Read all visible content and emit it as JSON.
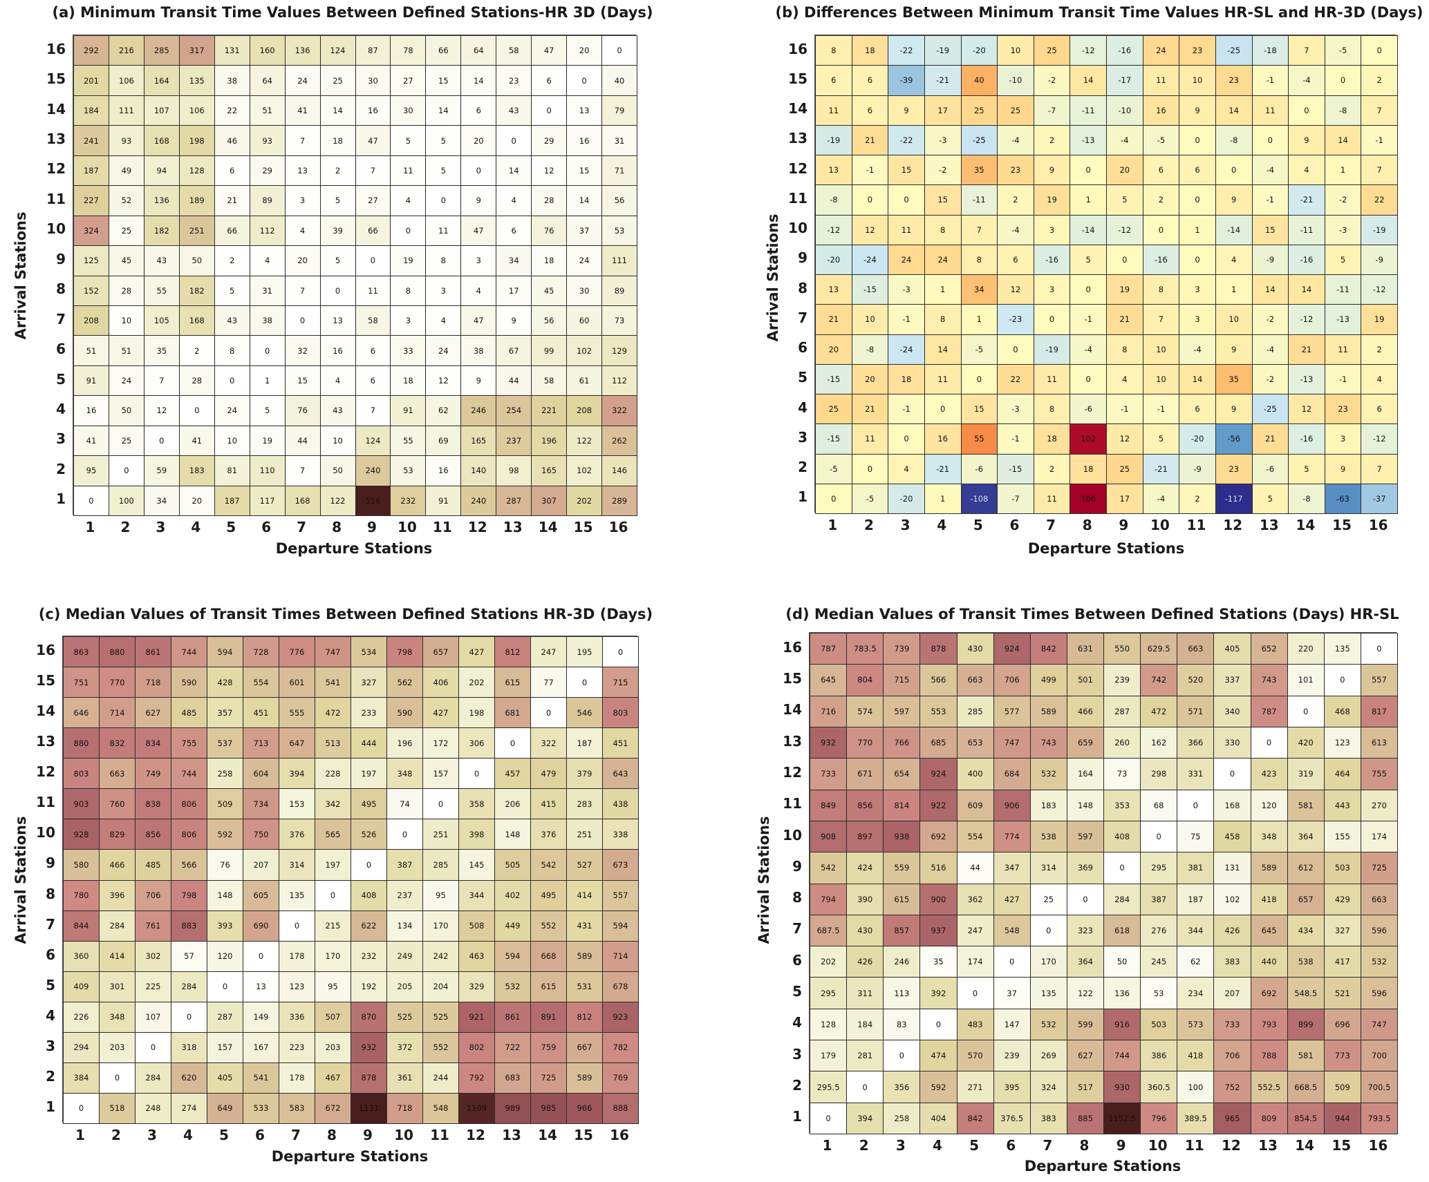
{
  "chart_data": [
    {
      "id": "a",
      "type": "heatmap",
      "title": "(a) Minimum Transit Time Values Between Defined Stations-HR 3D (Days)",
      "xlabel": "Departure Stations",
      "ylabel": "Arrival Stations",
      "x_ticks": [
        "1",
        "2",
        "3",
        "4",
        "5",
        "6",
        "7",
        "8",
        "9",
        "10",
        "11",
        "12",
        "13",
        "14",
        "15",
        "16"
      ],
      "y_ticks": [
        "16",
        "15",
        "14",
        "13",
        "12",
        "11",
        "10",
        "9",
        "8",
        "7",
        "6",
        "5",
        "4",
        "3",
        "2",
        "1"
      ],
      "colormap": "sequential-white-yellow-brown",
      "vmin": 0,
      "vmax": 516,
      "values": [
        [
          292,
          216,
          285,
          317,
          131,
          160,
          136,
          124,
          87,
          78,
          66,
          64,
          58,
          47,
          20,
          0
        ],
        [
          201,
          106,
          164,
          135,
          38,
          64,
          24,
          25,
          30,
          27,
          15,
          14,
          23,
          6,
          0,
          40
        ],
        [
          184,
          111,
          107,
          106,
          22,
          51,
          41,
          14,
          16,
          30,
          14,
          6,
          43,
          0,
          13,
          79
        ],
        [
          241,
          93,
          168,
          198,
          46,
          93,
          7,
          18,
          47,
          5,
          5,
          20,
          0,
          29,
          16,
          31
        ],
        [
          187,
          49,
          94,
          128,
          6,
          29,
          13,
          2,
          7,
          11,
          5,
          0,
          14,
          12,
          15,
          71
        ],
        [
          227,
          52,
          136,
          189,
          21,
          89,
          3,
          5,
          27,
          4,
          0,
          9,
          4,
          28,
          14,
          56
        ],
        [
          324,
          25,
          182,
          251,
          66,
          112,
          4,
          39,
          66,
          0,
          11,
          47,
          6,
          76,
          37,
          53
        ],
        [
          125,
          45,
          43,
          50,
          2,
          4,
          20,
          5,
          0,
          19,
          8,
          3,
          34,
          18,
          24,
          111
        ],
        [
          152,
          28,
          55,
          182,
          5,
          31,
          7,
          0,
          11,
          8,
          3,
          4,
          17,
          45,
          30,
          89
        ],
        [
          208,
          10,
          105,
          168,
          43,
          38,
          0,
          13,
          58,
          3,
          4,
          47,
          9,
          56,
          60,
          73
        ],
        [
          51,
          51,
          35,
          2,
          8,
          0,
          32,
          16,
          6,
          33,
          24,
          38,
          67,
          99,
          102,
          129
        ],
        [
          91,
          24,
          7,
          28,
          0,
          1,
          15,
          4,
          6,
          18,
          12,
          9,
          44,
          58,
          61,
          112
        ],
        [
          16,
          50,
          12,
          0,
          24,
          5,
          76,
          43,
          7,
          91,
          62,
          246,
          254,
          221,
          208,
          322
        ],
        [
          41,
          25,
          0,
          41,
          10,
          19,
          44,
          10,
          124,
          55,
          69,
          165,
          237,
          196,
          122,
          262
        ],
        [
          95,
          0,
          59,
          183,
          81,
          110,
          7,
          50,
          240,
          53,
          16,
          140,
          98,
          165,
          102,
          146
        ],
        [
          0,
          100,
          34,
          20,
          187,
          117,
          168,
          122,
          516,
          232,
          91,
          240,
          287,
          307,
          202,
          289
        ]
      ]
    },
    {
      "id": "b",
      "type": "heatmap",
      "title": "(b) Differences Between Minimum Transit Time Values HR-SL and HR-3D (Days)",
      "xlabel": "Departure Stations",
      "ylabel": "Arrival Stations",
      "x_ticks": [
        "1",
        "2",
        "3",
        "4",
        "5",
        "6",
        "7",
        "8",
        "9",
        "10",
        "11",
        "12",
        "13",
        "14",
        "15",
        "16"
      ],
      "y_ticks": [
        "16",
        "15",
        "14",
        "13",
        "12",
        "11",
        "10",
        "9",
        "8",
        "7",
        "6",
        "5",
        "4",
        "3",
        "2",
        "1"
      ],
      "colormap": "diverging-blue-yellow-red",
      "vmin": -117,
      "vmax": 106,
      "values": [
        [
          8,
          18,
          -22,
          -19,
          -20,
          10,
          25,
          -12,
          -16,
          24,
          23,
          -25,
          -18,
          7,
          -5,
          0
        ],
        [
          6,
          6,
          -39,
          -21,
          40,
          -10,
          -2,
          14,
          -17,
          11,
          10,
          23,
          -1,
          -4,
          0,
          2
        ],
        [
          11,
          6,
          9,
          17,
          25,
          25,
          -7,
          -11,
          -10,
          16,
          9,
          14,
          11,
          0,
          -8,
          7
        ],
        [
          -19,
          21,
          -22,
          -3,
          -25,
          -4,
          2,
          -13,
          -4,
          -5,
          0,
          -8,
          0,
          9,
          14,
          -1
        ],
        [
          13,
          -1,
          15,
          -2,
          35,
          23,
          9,
          0,
          20,
          6,
          6,
          0,
          -4,
          4,
          1,
          7
        ],
        [
          -8,
          0,
          0,
          15,
          -11,
          2,
          19,
          1,
          5,
          2,
          0,
          9,
          -1,
          -21,
          -2,
          22
        ],
        [
          -12,
          12,
          11,
          8,
          7,
          -4,
          3,
          -14,
          -12,
          0,
          1,
          -14,
          15,
          -11,
          -3,
          -19
        ],
        [
          -20,
          -24,
          24,
          24,
          8,
          6,
          -16,
          5,
          0,
          -16,
          0,
          4,
          -9,
          -16,
          5,
          -9
        ],
        [
          13,
          -15,
          -3,
          1,
          34,
          12,
          3,
          0,
          19,
          8,
          3,
          1,
          14,
          14,
          -11,
          -12
        ],
        [
          21,
          10,
          -1,
          8,
          1,
          -23,
          0,
          -1,
          21,
          7,
          3,
          10,
          -2,
          -12,
          -13,
          19
        ],
        [
          20,
          -8,
          -24,
          14,
          -5,
          0,
          -19,
          -4,
          8,
          10,
          -4,
          9,
          -4,
          21,
          11,
          2
        ],
        [
          -15,
          20,
          18,
          11,
          0,
          22,
          11,
          0,
          4,
          10,
          14,
          35,
          -2,
          -13,
          -1,
          4
        ],
        [
          25,
          21,
          -1,
          0,
          15,
          -3,
          8,
          -6,
          -1,
          -1,
          6,
          9,
          -25,
          12,
          23,
          6
        ],
        [
          -15,
          11,
          0,
          16,
          55,
          -1,
          18,
          102,
          12,
          5,
          -20,
          -56,
          21,
          -16,
          3,
          -12
        ],
        [
          -5,
          0,
          4,
          -21,
          -6,
          -15,
          2,
          18,
          25,
          -21,
          -9,
          23,
          -6,
          5,
          9,
          7
        ],
        [
          0,
          -5,
          -20,
          1,
          -108,
          -7,
          11,
          106,
          17,
          -4,
          2,
          -117,
          5,
          -8,
          -63,
          -37
        ]
      ]
    },
    {
      "id": "c",
      "type": "heatmap",
      "title": "(c) Median Values of Transit Times Between Defined Stations HR-3D (Days)",
      "xlabel": "Departure Stations",
      "ylabel": "Arrival Stations",
      "x_ticks": [
        "1",
        "2",
        "3",
        "4",
        "5",
        "6",
        "7",
        "8",
        "9",
        "10",
        "11",
        "12",
        "13",
        "14",
        "15",
        "16"
      ],
      "y_ticks": [
        "16",
        "15",
        "14",
        "13",
        "12",
        "11",
        "10",
        "9",
        "8",
        "7",
        "6",
        "5",
        "4",
        "3",
        "2",
        "1"
      ],
      "colormap": "sequential-white-yellow-brown",
      "vmin": 0,
      "vmax": 1131,
      "values": [
        [
          863,
          880,
          861,
          744,
          594,
          728,
          776,
          747,
          534,
          798,
          657,
          427,
          812,
          247,
          195,
          0
        ],
        [
          751,
          770,
          718,
          590,
          428,
          554,
          601,
          541,
          327,
          562,
          406,
          202,
          615,
          77,
          0,
          715
        ],
        [
          646,
          714,
          627,
          485,
          357,
          451,
          555,
          472,
          233,
          590,
          427,
          198,
          681,
          0,
          546,
          803
        ],
        [
          880,
          832,
          834,
          755,
          537,
          713,
          647,
          513,
          444,
          196,
          172,
          306,
          0,
          322,
          187,
          451
        ],
        [
          803,
          663,
          749,
          744,
          258,
          604,
          394,
          228,
          197,
          348,
          157,
          0,
          457,
          479,
          379,
          643
        ],
        [
          903,
          760,
          838,
          806,
          509,
          734,
          153,
          342,
          495,
          74,
          0,
          358,
          206,
          415,
          283,
          438
        ],
        [
          928,
          829,
          856,
          806,
          592,
          750,
          376,
          565,
          526,
          0,
          251,
          398,
          148,
          376,
          251,
          338
        ],
        [
          580,
          466,
          485,
          566,
          76,
          207,
          314,
          197,
          0,
          387,
          285,
          145,
          505,
          542,
          527,
          673
        ],
        [
          780,
          396,
          706,
          798,
          148,
          605,
          135,
          0,
          408,
          237,
          95,
          344,
          402,
          495,
          414,
          557
        ],
        [
          844,
          284,
          761,
          883,
          393,
          690,
          0,
          215,
          622,
          134,
          170,
          508,
          449,
          552,
          431,
          594
        ],
        [
          360,
          414,
          302,
          57,
          120,
          0,
          178,
          170,
          232,
          249,
          242,
          463,
          594,
          668,
          589,
          714
        ],
        [
          409,
          301,
          225,
          284,
          0,
          13,
          123,
          95,
          192,
          205,
          204,
          329,
          532,
          615,
          531,
          678
        ],
        [
          226,
          348,
          107,
          0,
          287,
          149,
          336,
          507,
          870,
          525,
          525,
          921,
          861,
          891,
          812,
          923
        ],
        [
          294,
          203,
          0,
          318,
          157,
          167,
          223,
          203,
          932,
          372,
          552,
          802,
          722,
          759,
          667,
          782
        ],
        [
          384,
          0,
          284,
          620,
          405,
          541,
          178,
          467,
          878,
          361,
          244,
          792,
          683,
          725,
          589,
          769
        ],
        [
          0,
          518,
          248,
          274,
          649,
          533,
          583,
          672,
          1131,
          718,
          548,
          1109,
          989,
          985,
          966,
          888
        ]
      ]
    },
    {
      "id": "d",
      "type": "heatmap",
      "title": "(d) Median Values of Transit Times Between Defined Stations (Days) HR-SL",
      "xlabel": "Departure Stations",
      "ylabel": "Arrival Stations",
      "x_ticks": [
        "1",
        "2",
        "3",
        "4",
        "5",
        "6",
        "7",
        "8",
        "9",
        "10",
        "11",
        "12",
        "13",
        "14",
        "15",
        "16"
      ],
      "y_ticks": [
        "16",
        "15",
        "14",
        "13",
        "12",
        "11",
        "10",
        "9",
        "8",
        "7",
        "6",
        "5",
        "4",
        "3",
        "2",
        "1"
      ],
      "colormap": "sequential-white-yellow-brown",
      "vmin": 0,
      "vmax": 1152.5,
      "values": [
        [
          787,
          783.5,
          739,
          878,
          430,
          924,
          842,
          631,
          550,
          629.5,
          663,
          405,
          652,
          220,
          135,
          0
        ],
        [
          645,
          804,
          715,
          566,
          663,
          706,
          499,
          501,
          239,
          742,
          520,
          337,
          743,
          101,
          0,
          557
        ],
        [
          716,
          574,
          597,
          553,
          285,
          577,
          589,
          466,
          287,
          472,
          571,
          340,
          787,
          0,
          468,
          817
        ],
        [
          932,
          770,
          766,
          685,
          653,
          747,
          743,
          659,
          260,
          162,
          366,
          330,
          0,
          420,
          123,
          613
        ],
        [
          733,
          671,
          654,
          924,
          400,
          684,
          532,
          164,
          73,
          298,
          331,
          0,
          423,
          319,
          464,
          755
        ],
        [
          849,
          856,
          814,
          922,
          609,
          906,
          183,
          148,
          353,
          68,
          0,
          168,
          120,
          581,
          443,
          270
        ],
        [
          908,
          897,
          938,
          692,
          554,
          774,
          538,
          597,
          408,
          0,
          75,
          458,
          348,
          364,
          155,
          174
        ],
        [
          542,
          424,
          559,
          516,
          44,
          347,
          314,
          369,
          0,
          295,
          381,
          131,
          589,
          612,
          503,
          725
        ],
        [
          794,
          390,
          615,
          900,
          362,
          427,
          25,
          0,
          284,
          387,
          187,
          102,
          418,
          657,
          429,
          663
        ],
        [
          687.5,
          430,
          857,
          937,
          247,
          548,
          0,
          323,
          618,
          276,
          344,
          426,
          645,
          434,
          327,
          596
        ],
        [
          202,
          426,
          246,
          35,
          174,
          0,
          170,
          364,
          50,
          245,
          62,
          383,
          440,
          538,
          417,
          532
        ],
        [
          295,
          311,
          113,
          392,
          0,
          37,
          135,
          122,
          136,
          53,
          234,
          207,
          692,
          548.5,
          521,
          596
        ],
        [
          128,
          184,
          83,
          0,
          483,
          147,
          532,
          599,
          916,
          503,
          573,
          733,
          793,
          899,
          696,
          747
        ],
        [
          179,
          281,
          0,
          474,
          570,
          239,
          269,
          627,
          744,
          386,
          418,
          706,
          788,
          581,
          773,
          700
        ],
        [
          295.5,
          0,
          356,
          592,
          271,
          395,
          324,
          517,
          930,
          360.5,
          100,
          752,
          552.5,
          668.5,
          509,
          700.5
        ],
        [
          0,
          394,
          258,
          404,
          842,
          376.5,
          383,
          885,
          1152.5,
          796,
          389.5,
          965,
          809,
          854.5,
          944,
          793.5
        ]
      ]
    }
  ]
}
